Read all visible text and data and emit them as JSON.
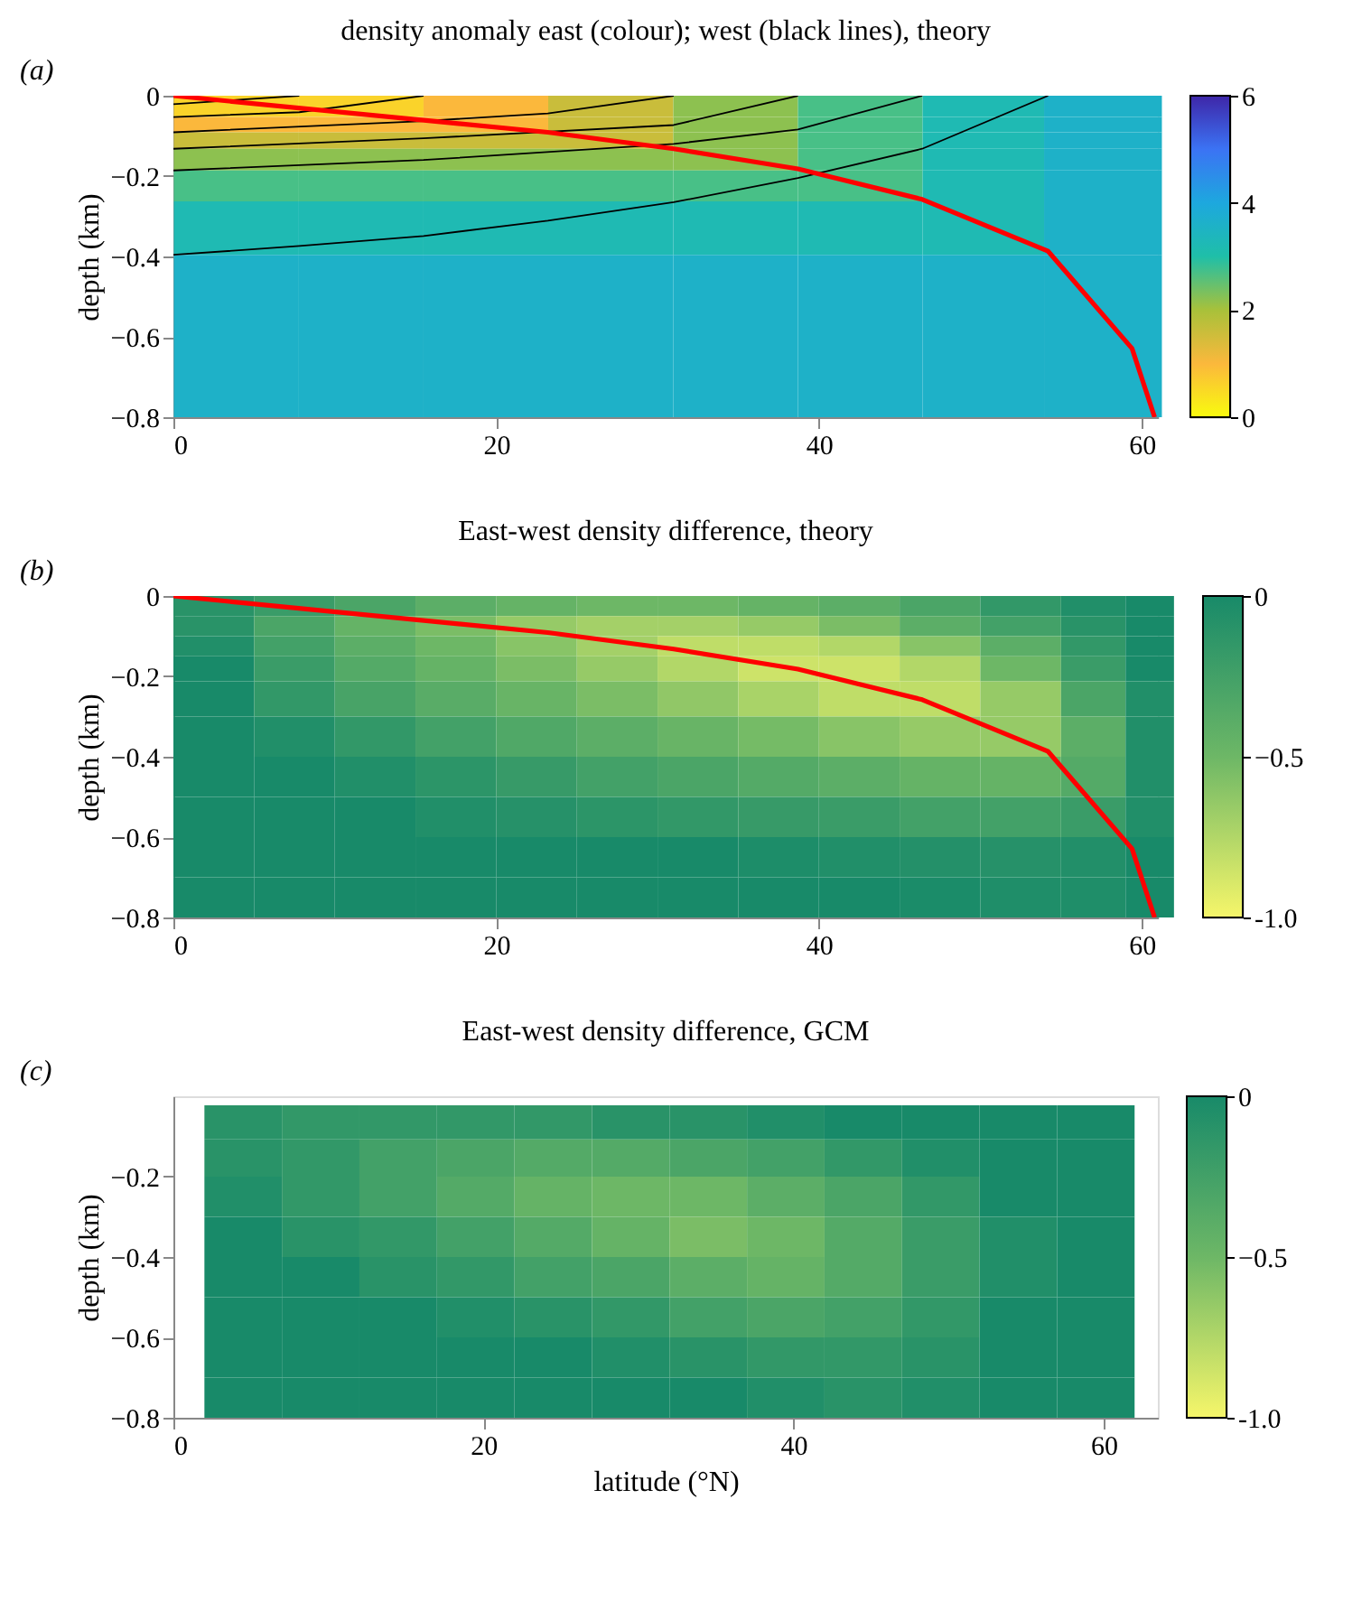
{
  "chart_data": [
    {
      "type": "heatmap",
      "title": "density anomaly east (colour); west (black lines), theory",
      "ylabel": "depth (km)",
      "annotations": [
        "(a)"
      ],
      "x": [
        3.9,
        11.65,
        19.35,
        27.1,
        34.85,
        42.55,
        50.3,
        57.6
      ],
      "y": [
        -0.0265,
        -0.0795,
        -0.1025,
        -0.1615,
        -0.2105,
        -0.3155,
        -0.4765,
        -0.6922
      ],
      "cells": [
        [
          0.6,
          0.6,
          1.0,
          1.6,
          2.2,
          2.7,
          3.2,
          3.6
        ],
        [
          1.0,
          1.0,
          1.0,
          1.6,
          2.2,
          2.7,
          3.2,
          3.6
        ],
        [
          1.6,
          1.6,
          1.6,
          1.6,
          2.2,
          2.7,
          3.2,
          3.6
        ],
        [
          2.2,
          2.2,
          2.2,
          2.2,
          2.2,
          2.7,
          3.2,
          3.6
        ],
        [
          2.7,
          2.7,
          2.7,
          2.7,
          2.7,
          2.7,
          3.2,
          3.6
        ],
        [
          3.2,
          3.2,
          3.2,
          3.2,
          3.2,
          3.2,
          3.2,
          3.6
        ],
        [
          3.6,
          3.6,
          3.6,
          3.6,
          3.6,
          3.6,
          3.6,
          3.6
        ],
        [
          3.6,
          3.6,
          3.6,
          3.6,
          3.6,
          3.6,
          3.6,
          3.6
        ]
      ],
      "colors": [
        "#f9fb0e",
        "#fbb83c",
        "#a8c13a",
        "#1fbfa8",
        "#1da8de",
        "#3b73f4",
        "#3e26a8"
      ],
      "clim": [
        0,
        6
      ],
      "cticks": [
        0,
        2,
        4,
        6
      ],
      "xlim": [
        0,
        61
      ],
      "ylim": [
        -0.8,
        0
      ],
      "xticks": [
        0,
        20,
        40,
        60
      ],
      "yticks": [
        0,
        -0.2,
        -0.4,
        -0.6,
        -0.8
      ],
      "series": [
        {
          "type": "line",
          "color": "#000000",
          "x": [
            0,
            7.8
          ],
          "values": [
            -0.021,
            0
          ]
        },
        {
          "type": "line",
          "color": "#000000",
          "x": [
            0,
            7.8,
            15.5
          ],
          "values": [
            -0.053,
            -0.041,
            0
          ]
        },
        {
          "type": "line",
          "color": "#000000",
          "x": [
            0,
            15.5,
            23.2,
            31
          ],
          "values": [
            -0.091,
            -0.063,
            -0.044,
            0
          ]
        },
        {
          "type": "line",
          "color": "#000000",
          "x": [
            0,
            15.5,
            31,
            38.7
          ],
          "values": [
            -0.132,
            -0.106,
            -0.073,
            0
          ]
        },
        {
          "type": "line",
          "color": "#000000",
          "x": [
            0,
            15.5,
            31,
            38.7,
            46.4
          ],
          "values": [
            -0.186,
            -0.16,
            -0.12,
            -0.084,
            0
          ]
        },
        {
          "type": "line",
          "color": "#000000",
          "x": [
            0,
            7.8,
            15.5,
            23.2,
            31,
            38.7,
            46.4,
            54.2
          ],
          "values": [
            -0.396,
            -0.374,
            -0.349,
            -0.311,
            -0.265,
            -0.205,
            -0.132,
            0
          ]
        },
        {
          "type": "line",
          "color": "#ff0000",
          "x": [
            0,
            23.2,
            31,
            38.7,
            46.4,
            54.2,
            59.4,
            60.8
          ],
          "values": [
            0,
            -0.091,
            -0.132,
            -0.182,
            -0.258,
            -0.387,
            -0.629,
            -0.8
          ]
        }
      ]
    },
    {
      "type": "heatmap",
      "title": "East-west density difference, theory",
      "ylabel": "depth (km)",
      "annotations": [
        "(b)"
      ],
      "x": [
        2.5,
        7.5,
        12.5,
        17.5,
        22.5,
        27.5,
        32.5,
        37.5,
        42.5,
        47.5,
        52.5,
        57.5,
        60.5
      ],
      "y": [
        -0.025,
        -0.075,
        -0.125,
        -0.175,
        -0.25,
        -0.35,
        -0.45,
        -0.55,
        -0.65,
        -0.75
      ],
      "cells": [
        [
          -0.1,
          -0.2,
          -0.3,
          -0.4,
          -0.45,
          -0.5,
          -0.5,
          -0.45,
          -0.4,
          -0.3,
          -0.15,
          -0.05,
          0
        ],
        [
          -0.1,
          -0.3,
          -0.45,
          -0.55,
          -0.65,
          -0.7,
          -0.7,
          -0.65,
          -0.55,
          -0.4,
          -0.25,
          -0.1,
          0
        ],
        [
          -0.05,
          -0.25,
          -0.4,
          -0.5,
          -0.6,
          -0.7,
          -0.8,
          -0.8,
          -0.75,
          -0.6,
          -0.4,
          -0.15,
          0
        ],
        [
          0,
          -0.2,
          -0.35,
          -0.45,
          -0.55,
          -0.65,
          -0.75,
          -0.85,
          -0.85,
          -0.75,
          -0.5,
          -0.2,
          0
        ],
        [
          0,
          -0.15,
          -0.28,
          -0.38,
          -0.47,
          -0.55,
          -0.63,
          -0.72,
          -0.8,
          -0.8,
          -0.65,
          -0.3,
          -0.05
        ],
        [
          0,
          -0.05,
          -0.15,
          -0.25,
          -0.33,
          -0.4,
          -0.47,
          -0.53,
          -0.6,
          -0.65,
          -0.65,
          -0.4,
          -0.05
        ],
        [
          0,
          0,
          -0.05,
          -0.12,
          -0.18,
          -0.25,
          -0.3,
          -0.35,
          -0.4,
          -0.45,
          -0.45,
          -0.35,
          -0.05
        ],
        [
          0,
          0,
          0,
          -0.05,
          -0.08,
          -0.12,
          -0.15,
          -0.18,
          -0.2,
          -0.25,
          -0.25,
          -0.2,
          -0.05
        ],
        [
          0,
          0,
          0,
          0,
          0,
          0,
          0,
          -0.03,
          -0.05,
          -0.07,
          -0.08,
          -0.06,
          0
        ],
        [
          0,
          0,
          0,
          0,
          0,
          0,
          0,
          0,
          0,
          -0.02,
          -0.04,
          -0.04,
          0
        ]
      ],
      "colors": [
        "#f6f66a",
        "#6db766",
        "#188a69"
      ],
      "clim": [
        -1,
        0
      ],
      "cticks": [
        0,
        -0.5,
        {
          "value": -1,
          "label": "-1.0"
        }
      ],
      "xlim": [
        0,
        61
      ],
      "ylim": [
        -0.8,
        0
      ],
      "xticks": [
        0,
        20,
        40,
        60
      ],
      "yticks": [
        0,
        -0.2,
        -0.4,
        -0.6,
        -0.8
      ],
      "series": [
        {
          "type": "line",
          "color": "#ff0000",
          "x": [
            0,
            23.2,
            31,
            38.7,
            46.4,
            54.2,
            59.4,
            60.8
          ],
          "values": [
            0,
            -0.091,
            -0.132,
            -0.182,
            -0.258,
            -0.387,
            -0.629,
            -0.8
          ]
        }
      ]
    },
    {
      "type": "heatmap",
      "title": "East-west density difference, GCM",
      "xlabel": "latitude (°N)",
      "ylabel": "depth (km)",
      "annotations": [
        "(c)"
      ],
      "x": [
        4.5,
        9.5,
        14.5,
        19.5,
        24.5,
        29.5,
        34.5,
        39.5,
        44.5,
        49.5,
        54.5,
        59.5
      ],
      "y": [
        -0.065,
        -0.15,
        -0.25,
        -0.35,
        -0.45,
        -0.55,
        -0.65,
        -0.75
      ],
      "cells": [
        [
          -0.1,
          -0.15,
          -0.15,
          -0.15,
          -0.15,
          -0.1,
          -0.1,
          -0.05,
          0,
          0,
          0,
          0
        ],
        [
          -0.1,
          -0.15,
          -0.25,
          -0.3,
          -0.35,
          -0.35,
          -0.3,
          -0.25,
          -0.15,
          -0.05,
          0,
          0
        ],
        [
          -0.05,
          -0.15,
          -0.25,
          -0.35,
          -0.45,
          -0.5,
          -0.5,
          -0.4,
          -0.3,
          -0.15,
          0,
          0
        ],
        [
          0,
          -0.1,
          -0.15,
          -0.25,
          -0.35,
          -0.45,
          -0.55,
          -0.5,
          -0.35,
          -0.2,
          -0.05,
          0
        ],
        [
          0,
          0,
          -0.1,
          -0.15,
          -0.25,
          -0.3,
          -0.4,
          -0.45,
          -0.35,
          -0.2,
          -0.05,
          0
        ],
        [
          0,
          0,
          0,
          -0.05,
          -0.1,
          -0.15,
          -0.25,
          -0.3,
          -0.25,
          -0.15,
          0,
          0
        ],
        [
          0,
          0,
          0,
          0,
          0,
          -0.05,
          -0.1,
          -0.15,
          -0.15,
          -0.1,
          0,
          0
        ],
        [
          0,
          0,
          0,
          0,
          0,
          0,
          0,
          -0.05,
          -0.1,
          -0.05,
          0,
          0
        ]
      ],
      "colors": [
        "#f6f66a",
        "#6db766",
        "#188a69"
      ],
      "clim": [
        -1,
        0
      ],
      "cticks": [
        0,
        -0.5,
        {
          "value": -1,
          "label": "-1.0"
        }
      ],
      "xlim": [
        0,
        63.5
      ],
      "ylim": [
        -0.8,
        0
      ],
      "xticks": [
        0,
        20,
        40,
        60
      ],
      "yticks": [
        -0.2,
        -0.4,
        -0.6,
        -0.8
      ]
    }
  ]
}
